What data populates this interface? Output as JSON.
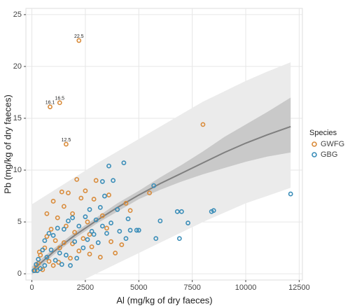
{
  "chart_data": {
    "type": "scatter",
    "x_label": "Al (mg/kg of dry faeces)",
    "y_label": "Pb (mg/kg of dry faeces)",
    "legend_title": "Species",
    "legend_position": "right",
    "grid": true,
    "xlim": [
      -280,
      12650
    ],
    "ylim": [
      -0.6,
      25.6
    ],
    "xticks": [
      0,
      2500,
      5000,
      7500,
      10000,
      12500
    ],
    "yticks": [
      0,
      5,
      10,
      15,
      20,
      25
    ],
    "series": [
      {
        "name": "GWFG",
        "color": "#d98b3a",
        "x": [
          2200,
          1300,
          850,
          1600,
          8000,
          5500,
          4600,
          4400,
          3000,
          2100,
          1700,
          1400,
          2500,
          3600,
          2900,
          2300,
          1000,
          1500,
          1900,
          2600,
          3300,
          1200,
          700,
          900,
          1600,
          2000,
          2700,
          3500,
          3200,
          3900,
          2800,
          2200,
          1800,
          1300,
          1100,
          600,
          400,
          300,
          200,
          500,
          800,
          1000,
          150,
          700,
          1500,
          2400,
          3700,
          4200,
          1900,
          2700,
          350,
          1250
        ],
        "values": [
          22.5,
          16.5,
          16.1,
          12.5,
          14.4,
          7.8,
          6.1,
          6.8,
          9.0,
          9.1,
          7.8,
          7.9,
          8.0,
          7.6,
          7.2,
          7.3,
          7.0,
          6.5,
          5.8,
          5.0,
          5.6,
          5.4,
          5.8,
          4.3,
          4.6,
          4.0,
          3.8,
          4.4,
          1.6,
          2.0,
          2.6,
          2.2,
          1.5,
          2.5,
          3.2,
          2.5,
          1.8,
          1.0,
          0.6,
          0.4,
          1.2,
          0.8,
          0.3,
          3.6,
          3.0,
          3.4,
          3.1,
          2.8,
          2.9,
          1.9,
          2.1,
          1.1
        ]
      },
      {
        "name": "GBG",
        "color": "#3a8db8",
        "x": [
          12100,
          8500,
          8400,
          7300,
          7000,
          6800,
          6000,
          5700,
          5800,
          6900,
          4900,
          5000,
          4600,
          4300,
          3600,
          3800,
          3300,
          4500,
          3400,
          4000,
          3200,
          2700,
          2500,
          3000,
          3700,
          4100,
          3500,
          2900,
          2200,
          1900,
          1700,
          1500,
          1200,
          1000,
          800,
          600,
          500,
          300,
          200,
          100,
          400,
          700,
          900,
          1300,
          1600,
          2100,
          2400,
          2000,
          2600,
          3100,
          1400,
          1800,
          1100,
          250,
          600,
          4400,
          3300,
          2800
        ],
        "values": [
          7.7,
          6.1,
          6.0,
          4.9,
          6.0,
          6.0,
          5.1,
          8.5,
          3.4,
          3.4,
          4.2,
          4.2,
          4.2,
          10.7,
          10.4,
          9.0,
          8.9,
          5.3,
          7.5,
          6.2,
          6.4,
          6.2,
          5.5,
          5.2,
          4.9,
          4.1,
          3.9,
          3.8,
          4.6,
          5.4,
          5.1,
          4.3,
          4.4,
          3.7,
          3.9,
          3.2,
          2.3,
          1.4,
          0.9,
          0.3,
          0.5,
          1.6,
          2.3,
          2.0,
          1.8,
          1.5,
          2.5,
          3.1,
          3.3,
          3.0,
          0.9,
          0.8,
          1.3,
          0.3,
          0.8,
          3.4,
          4.6,
          4.1
        ]
      }
    ],
    "fit": {
      "x": [
        0,
        1000,
        2000,
        3000,
        4000,
        5000,
        6000,
        7000,
        8000,
        9000,
        10000,
        11000,
        12100
      ],
      "y": [
        0.3,
        2.1,
        3.7,
        5.1,
        6.4,
        7.6,
        8.7,
        9.7,
        10.7,
        11.7,
        12.6,
        13.4,
        14.2
      ],
      "ci_lower": [
        -0.1,
        1.8,
        3.4,
        4.8,
        6.0,
        7.2,
        8.1,
        8.9,
        9.6,
        10.2,
        10.8,
        11.3,
        11.7
      ],
      "ci_upper": [
        0.7,
        2.4,
        4.0,
        5.4,
        6.8,
        8.0,
        9.3,
        10.5,
        11.8,
        13.2,
        14.4,
        15.6,
        17.0
      ],
      "pi_lower": [
        -3,
        -2,
        -1,
        0,
        1.0,
        2.0,
        3.0,
        4.0,
        5.0,
        5.9,
        6.8,
        7.5,
        8.3
      ],
      "pi_upper": [
        6.7,
        8.0,
        9.3,
        10.6,
        11.8,
        13.0,
        14.2,
        15.4,
        16.6,
        17.6,
        18.6,
        19.5,
        20.4
      ]
    },
    "annotations": [
      {
        "x": 2200,
        "y": 22.5,
        "label": "22.5"
      },
      {
        "x": 1300,
        "y": 16.5,
        "label": "16.5"
      },
      {
        "x": 850,
        "y": 16.1,
        "label": "16.1"
      },
      {
        "x": 1600,
        "y": 12.5,
        "label": "12.5"
      }
    ]
  }
}
